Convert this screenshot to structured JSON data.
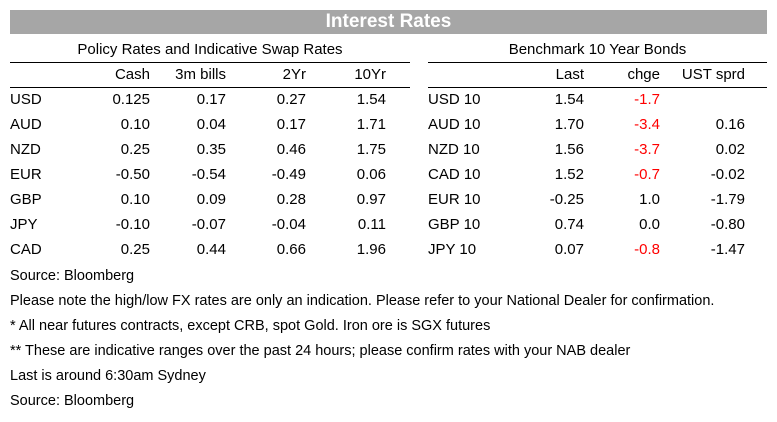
{
  "title": "Interest Rates",
  "policy": {
    "heading": "Policy Rates and Indicative Swap Rates",
    "columns": [
      "Cash",
      "3m bills",
      "2Yr",
      "10Yr"
    ],
    "rows": [
      {
        "ccy": "USD",
        "vals": [
          "0.125",
          "0.17",
          "0.27",
          "1.54"
        ]
      },
      {
        "ccy": "AUD",
        "vals": [
          "0.10",
          "0.04",
          "0.17",
          "1.71"
        ]
      },
      {
        "ccy": "NZD",
        "vals": [
          "0.25",
          "0.35",
          "0.46",
          "1.75"
        ]
      },
      {
        "ccy": "EUR",
        "vals": [
          "-0.50",
          "-0.54",
          "-0.49",
          "0.06"
        ]
      },
      {
        "ccy": "GBP",
        "vals": [
          "0.10",
          "0.09",
          "0.28",
          "0.97"
        ]
      },
      {
        "ccy": "JPY",
        "vals": [
          "-0.10",
          "-0.07",
          "-0.04",
          "0.11"
        ]
      },
      {
        "ccy": "CAD",
        "vals": [
          "0.25",
          "0.44",
          "0.66",
          "1.96"
        ]
      }
    ]
  },
  "bonds": {
    "heading": "Benchmark 10 Year Bonds",
    "columns": [
      "Last",
      "chge",
      "UST sprd"
    ],
    "rows": [
      {
        "name": "USD 10",
        "last": "1.54",
        "chge": "-1.7",
        "sprd": ""
      },
      {
        "name": "AUD 10",
        "last": "1.70",
        "chge": "-3.4",
        "sprd": "0.16"
      },
      {
        "name": "NZD 10",
        "last": "1.56",
        "chge": "-3.7",
        "sprd": "0.02"
      },
      {
        "name": "CAD 10",
        "last": "1.52",
        "chge": "-0.7",
        "sprd": "-0.02"
      },
      {
        "name": "EUR 10",
        "last": "-0.25",
        "chge": "1.0",
        "sprd": "-1.79"
      },
      {
        "name": "GBP 10",
        "last": "0.74",
        "chge": "0.0",
        "sprd": "-0.80"
      },
      {
        "name": "JPY 10",
        "last": "0.07",
        "chge": "-0.8",
        "sprd": "-1.47"
      }
    ]
  },
  "negative_change_color": "#ff0000",
  "notes": [
    "Source: Bloomberg",
    "Please note the high/low FX rates are only an indication. Please refer to your National Dealer for confirmation.",
    "* All near futures contracts, except CRB, spot Gold.  Iron ore is SGX futures",
    "** These are indicative ranges over the past 24 hours; please confirm rates with your NAB dealer",
    "Last is around 6:30am Sydney",
    "Source: Bloomberg"
  ]
}
